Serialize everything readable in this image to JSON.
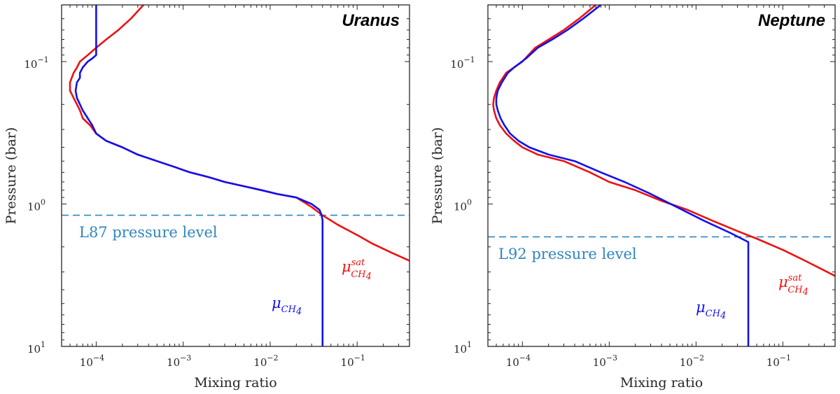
{
  "chart_data": [
    {
      "type": "line",
      "title": "Uranus",
      "xlabel": "Mixing ratio",
      "ylabel": "Pressure (bar)",
      "xscale": "log",
      "yscale": "log",
      "xlim": [
        4e-05,
        0.4
      ],
      "ylim": [
        0.04,
        10
      ],
      "yaxis_inverted": true,
      "xticks": [
        {
          "base": "10",
          "exp": "−4",
          "value": 0.0001
        },
        {
          "base": "10",
          "exp": "−3",
          "value": 0.001
        },
        {
          "base": "10",
          "exp": "−2",
          "value": 0.01
        },
        {
          "base": "10",
          "exp": "−1",
          "value": 0.1
        }
      ],
      "yticks": [
        {
          "base": "10",
          "exp": "−1",
          "value": 0.1
        },
        {
          "base": "10",
          "exp": "0",
          "value": 1
        },
        {
          "base": "10",
          "exp": "1",
          "value": 10
        }
      ],
      "series": [
        {
          "name": "mu_CH4_sat",
          "label_main": "μ",
          "label_sup": "sat",
          "label_sub": "CH",
          "label_subsub": "4",
          "color": "#ee1111",
          "x": [
            0.00035,
            0.00025,
            0.00018,
            0.00013,
            0.0001,
            8e-05,
            6.5e-05,
            6e-05,
            5.5e-05,
            5e-05,
            5e-05,
            5.5e-05,
            6e-05,
            6.5e-05,
            7e-05,
            8.5e-05,
            0.0001,
            0.00013,
            0.0002,
            0.0003,
            0.0005,
            0.0008,
            0.0012,
            0.002,
            0.003,
            0.005,
            0.008,
            0.012,
            0.02,
            0.03,
            0.04,
            0.06,
            0.1,
            0.15,
            0.25,
            0.4
          ],
          "y": [
            0.04,
            0.05,
            0.06,
            0.07,
            0.08,
            0.09,
            0.1,
            0.11,
            0.12,
            0.14,
            0.16,
            0.18,
            0.2,
            0.22,
            0.25,
            0.28,
            0.32,
            0.36,
            0.4,
            0.45,
            0.5,
            0.55,
            0.6,
            0.65,
            0.7,
            0.75,
            0.8,
            0.85,
            0.9,
            1.05,
            1.2,
            1.4,
            1.65,
            1.9,
            2.2,
            2.5
          ]
        },
        {
          "name": "mu_CH4",
          "label_main": "μ",
          "label_sub": "CH",
          "label_subsub": "4",
          "color": "#1111ee",
          "x": [
            0.0001,
            0.0001,
            0.0001,
            0.0001,
            9e-05,
            8e-05,
            7e-05,
            6.5e-05,
            6.5e-05,
            6e-05,
            5.8e-05,
            6e-05,
            6.5e-05,
            7e-05,
            8e-05,
            9e-05,
            0.0001,
            0.00013,
            0.0002,
            0.0003,
            0.0005,
            0.0008,
            0.0012,
            0.002,
            0.003,
            0.005,
            0.008,
            0.012,
            0.02,
            0.03,
            0.037,
            0.039,
            0.04,
            0.04,
            0.04
          ],
          "y": [
            0.04,
            0.06,
            0.08,
            0.09,
            0.095,
            0.1,
            0.11,
            0.12,
            0.13,
            0.14,
            0.16,
            0.18,
            0.2,
            0.22,
            0.25,
            0.28,
            0.32,
            0.36,
            0.4,
            0.45,
            0.5,
            0.55,
            0.6,
            0.65,
            0.7,
            0.75,
            0.8,
            0.85,
            0.9,
            1.0,
            1.1,
            1.2,
            1.3,
            5,
            10
          ]
        }
      ],
      "reference_line": {
        "label": "L87 pressure level",
        "pressure": 1.2,
        "color": "#2e86c1"
      }
    },
    {
      "type": "line",
      "title": "Neptune",
      "xlabel": "Mixing ratio",
      "ylabel": "Pressure (bar)",
      "xscale": "log",
      "yscale": "log",
      "xlim": [
        4e-05,
        0.4
      ],
      "ylim": [
        0.04,
        10
      ],
      "yaxis_inverted": true,
      "xticks": [
        {
          "base": "10",
          "exp": "−4",
          "value": 0.0001
        },
        {
          "base": "10",
          "exp": "−3",
          "value": 0.001
        },
        {
          "base": "10",
          "exp": "−2",
          "value": 0.01
        },
        {
          "base": "10",
          "exp": "−1",
          "value": 0.1
        }
      ],
      "yticks": [
        {
          "base": "10",
          "exp": "−1",
          "value": 0.1
        },
        {
          "base": "10",
          "exp": "0",
          "value": 1
        },
        {
          "base": "10",
          "exp": "1",
          "value": 10
        }
      ],
      "series": [
        {
          "name": "mu_CH4_sat",
          "label_main": "μ",
          "label_sup": "sat",
          "label_sub": "CH",
          "label_subsub": "4",
          "color": "#ee1111",
          "x": [
            0.0007,
            0.00045,
            0.0003,
            0.0002,
            0.00014,
            0.0001,
            8e-05,
            6.5e-05,
            5.5e-05,
            5e-05,
            4.7e-05,
            4.6e-05,
            4.7e-05,
            5e-05,
            5.5e-05,
            6.5e-05,
            8e-05,
            0.0001,
            0.00015,
            0.0003,
            0.0006,
            0.001,
            0.002,
            0.004,
            0.008,
            0.015,
            0.03,
            0.05,
            0.1,
            0.18,
            0.4
          ],
          "y": [
            0.04,
            0.05,
            0.06,
            0.07,
            0.08,
            0.1,
            0.11,
            0.12,
            0.14,
            0.16,
            0.18,
            0.2,
            0.22,
            0.25,
            0.28,
            0.32,
            0.36,
            0.4,
            0.45,
            0.5,
            0.6,
            0.7,
            0.8,
            0.95,
            1.1,
            1.3,
            1.55,
            1.75,
            2.1,
            2.5,
            3.2
          ]
        },
        {
          "name": "mu_CH4",
          "label_main": "μ",
          "label_sub": "CH",
          "label_subsub": "4",
          "color": "#1111ee",
          "x": [
            0.0008,
            0.0005,
            0.00033,
            0.00022,
            0.00015,
            0.00011,
            8e-05,
            6.8e-05,
            5.8e-05,
            5.2e-05,
            5e-05,
            5e-05,
            5.2e-05,
            5.6e-05,
            6.2e-05,
            7.2e-05,
            9e-05,
            0.00012,
            0.0002,
            0.0004,
            0.0008,
            0.0015,
            0.003,
            0.006,
            0.012,
            0.025,
            0.04,
            0.04,
            0.04
          ],
          "y": [
            0.04,
            0.05,
            0.06,
            0.07,
            0.08,
            0.095,
            0.11,
            0.12,
            0.14,
            0.16,
            0.18,
            0.2,
            0.22,
            0.25,
            0.28,
            0.32,
            0.36,
            0.4,
            0.45,
            0.5,
            0.6,
            0.7,
            0.85,
            1.05,
            1.3,
            1.6,
            1.85,
            5,
            10
          ]
        }
      ],
      "reference_line": {
        "label": "L92 pressure level",
        "pressure": 1.7,
        "color": "#2e86c1"
      }
    }
  ]
}
